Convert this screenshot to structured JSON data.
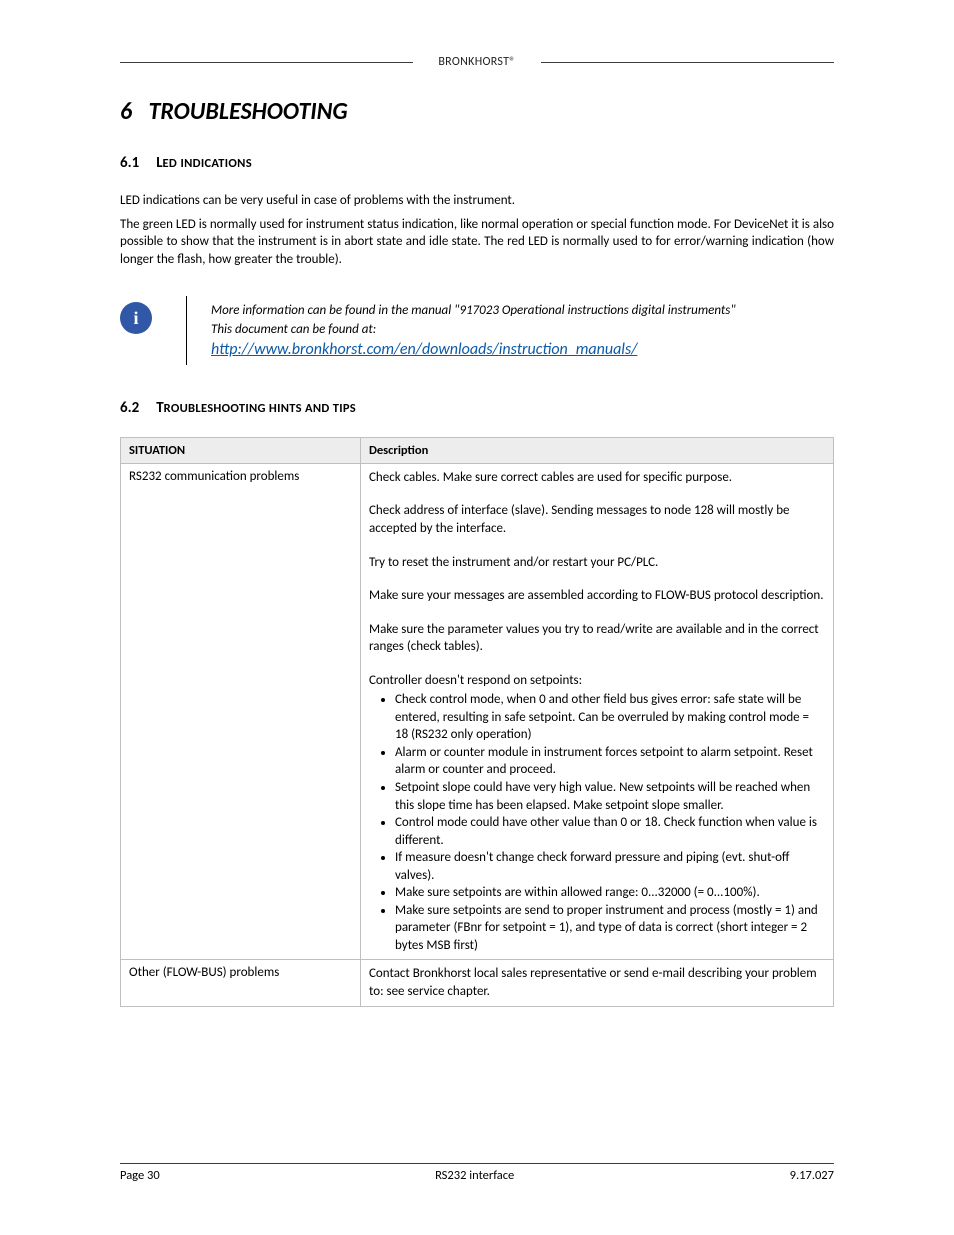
{
  "header": {
    "brand": "BRONKHORST®"
  },
  "chapter": {
    "number": "6",
    "title": "TROUBLESHOOTING"
  },
  "section61": {
    "number": "6.1",
    "big": "L",
    "caps_big": "ED",
    "caps_small": "INDICATIONS",
    "p1": "LED indications can be very useful in case of problems with the instrument.",
    "p2": "The green LED is normally used for instrument status indication, like normal operation or special function mode. For DeviceNet it is also possible to show that the instrument is in abort state and idle state.  The red LED is normally used to for error/warning indication (how longer the flash, how greater the trouble)."
  },
  "note": {
    "line1": " More information can be found in the manual \"917023 Operational instructions digital instruments\"",
    "line2": "This document can be found at:",
    "link": "http://www.bronkhorst.com/en/downloads/instruction_manuals/"
  },
  "section62": {
    "number": "6.2",
    "big": "T",
    "caps_small": "ROUBLESHOOTING HINTS AND TIPS"
  },
  "table": {
    "headers": {
      "situation": "SITUATION",
      "description": "Description"
    },
    "rows": [
      {
        "situation": "RS232 communication problems",
        "blocks": {
          "b1": "Check cables. Make sure correct cables are used for specific purpose.",
          "b2": "Check address of interface (slave). Sending messages to node 128 will mostly be accepted by the interface.",
          "b3": "Try to reset the instrument and/or restart your PC/PLC.",
          "b4": "Make sure your messages are assembled according to FLOW-BUS protocol description.",
          "b5": "Make sure the parameter values you try to read/write are available and in the correct ranges (check tables).",
          "b6_lead": "Controller doesn't respond on setpoints:",
          "b6_items": {
            "i1": "Check control mode, when 0 and other field bus gives error: safe state will be entered, resulting in safe setpoint. Can be overruled by making control mode = 18 (RS232 only operation)",
            "i2": "Alarm or counter module in instrument forces setpoint to alarm setpoint. Reset alarm or counter and proceed.",
            "i3": "Setpoint slope could have very high value. New setpoints will be reached when this slope time has been elapsed. Make setpoint slope smaller.",
            "i4": "Control mode could have other value than 0 or 18. Check function when value is different.",
            "i5": "If measure doesn't change check forward pressure and piping (evt. shut-off valves).",
            "i6": "Make sure setpoints are within allowed range: 0...32000 (= 0...100%).",
            "i7": "Make sure setpoints are send to proper instrument and process (mostly = 1) and parameter (FBnr for setpoint = 1), and type of data is correct (short integer = 2 bytes MSB first)"
          }
        }
      },
      {
        "situation": "Other (FLOW-BUS) problems",
        "blocks": {
          "b1": "Contact Bronkhorst local sales representative or send e-mail describing your problem to: see service chapter."
        }
      }
    ]
  },
  "footer": {
    "page": "Page 30",
    "center": "RS232 interface",
    "right": "9.17.027"
  }
}
